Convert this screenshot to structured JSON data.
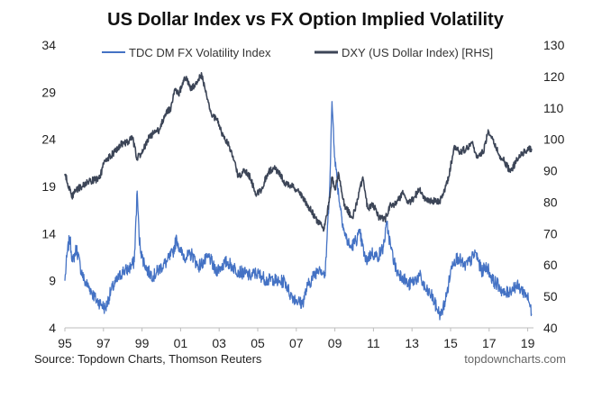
{
  "chart_data": {
    "type": "line",
    "title": "US Dollar Index vs FX Option Implied Volatility",
    "source": "Source: Topdown Charts, Thomson Reuters",
    "watermark": "topdowncharts.com",
    "legend_placement": "top",
    "grid": false,
    "x_axis": {
      "range": [
        1995,
        2019.3
      ],
      "ticks": [
        1995,
        1997,
        1999,
        2001,
        2003,
        2005,
        2007,
        2009,
        2011,
        2013,
        2015,
        2017,
        2019
      ],
      "tick_labels": [
        "95",
        "97",
        "99",
        "01",
        "03",
        "05",
        "07",
        "09",
        "11",
        "13",
        "15",
        "17",
        "19"
      ]
    },
    "y_left": {
      "range": [
        4,
        34
      ],
      "ticks": [
        4,
        9,
        14,
        19,
        24,
        29,
        34
      ],
      "tick_labels": [
        "4",
        "9",
        "14",
        "19",
        "24",
        "29",
        "34"
      ]
    },
    "y_right": {
      "range": [
        40,
        130
      ],
      "ticks": [
        40,
        50,
        60,
        70,
        80,
        90,
        100,
        110,
        120,
        130
      ],
      "tick_labels": [
        "40",
        "50",
        "60",
        "70",
        "80",
        "90",
        "100",
        "110",
        "120",
        "130"
      ]
    },
    "series": [
      {
        "name": "TDC DM FX Volatility Index",
        "axis": "left",
        "color": "#4472C4",
        "points": [
          [
            1995.0,
            9.0
          ],
          [
            1995.1,
            11.5
          ],
          [
            1995.25,
            13.6
          ],
          [
            1995.4,
            11.0
          ],
          [
            1995.6,
            12.5
          ],
          [
            1995.8,
            10.5
          ],
          [
            1996.0,
            9.0
          ],
          [
            1996.3,
            8.2
          ],
          [
            1996.6,
            7.0
          ],
          [
            1996.9,
            6.5
          ],
          [
            1997.1,
            6.0
          ],
          [
            1997.4,
            8.0
          ],
          [
            1997.7,
            9.0
          ],
          [
            1998.0,
            10.0
          ],
          [
            1998.3,
            10.2
          ],
          [
            1998.6,
            11.0
          ],
          [
            1998.75,
            18.5
          ],
          [
            1998.85,
            13.5
          ],
          [
            1999.0,
            11.5
          ],
          [
            1999.3,
            10.0
          ],
          [
            1999.6,
            9.5
          ],
          [
            2000.0,
            10.5
          ],
          [
            2000.3,
            11.0
          ],
          [
            2000.6,
            12.0
          ],
          [
            2000.8,
            13.5
          ],
          [
            2001.0,
            12.0
          ],
          [
            2001.3,
            11.5
          ],
          [
            2001.6,
            11.8
          ],
          [
            2001.9,
            10.5
          ],
          [
            2002.2,
            11.0
          ],
          [
            2002.5,
            11.5
          ],
          [
            2002.8,
            10.0
          ],
          [
            2003.1,
            10.5
          ],
          [
            2003.4,
            11.0
          ],
          [
            2003.7,
            10.5
          ],
          [
            2004.0,
            10.0
          ],
          [
            2004.3,
            9.8
          ],
          [
            2004.6,
            9.5
          ],
          [
            2004.9,
            9.8
          ],
          [
            2005.2,
            9.5
          ],
          [
            2005.5,
            9.0
          ],
          [
            2005.8,
            9.2
          ],
          [
            2006.1,
            8.8
          ],
          [
            2006.4,
            9.0
          ],
          [
            2006.7,
            7.5
          ],
          [
            2007.0,
            7.0
          ],
          [
            2007.3,
            6.5
          ],
          [
            2007.6,
            8.5
          ],
          [
            2007.9,
            9.5
          ],
          [
            2008.2,
            10.5
          ],
          [
            2008.5,
            9.5
          ],
          [
            2008.75,
            20.0
          ],
          [
            2008.85,
            28.0
          ],
          [
            2009.0,
            22.0
          ],
          [
            2009.2,
            18.0
          ],
          [
            2009.5,
            14.0
          ],
          [
            2009.8,
            12.5
          ],
          [
            2010.0,
            13.0
          ],
          [
            2010.3,
            14.0
          ],
          [
            2010.6,
            11.0
          ],
          [
            2010.9,
            12.0
          ],
          [
            2011.2,
            11.5
          ],
          [
            2011.5,
            12.5
          ],
          [
            2011.7,
            15.0
          ],
          [
            2011.9,
            12.5
          ],
          [
            2012.2,
            10.0
          ],
          [
            2012.5,
            9.5
          ],
          [
            2012.8,
            8.5
          ],
          [
            2013.1,
            9.0
          ],
          [
            2013.4,
            9.5
          ],
          [
            2013.7,
            8.0
          ],
          [
            2014.0,
            7.5
          ],
          [
            2014.3,
            6.0
          ],
          [
            2014.5,
            5.3
          ],
          [
            2014.8,
            7.5
          ],
          [
            2015.1,
            11.0
          ],
          [
            2015.4,
            11.5
          ],
          [
            2015.7,
            10.5
          ],
          [
            2016.0,
            11.0
          ],
          [
            2016.3,
            12.0
          ],
          [
            2016.6,
            10.0
          ],
          [
            2016.9,
            10.5
          ],
          [
            2017.2,
            9.0
          ],
          [
            2017.5,
            8.5
          ],
          [
            2017.8,
            7.5
          ],
          [
            2018.1,
            8.0
          ],
          [
            2018.4,
            8.5
          ],
          [
            2018.7,
            8.0
          ],
          [
            2018.95,
            7.5
          ],
          [
            2019.1,
            6.5
          ],
          [
            2019.2,
            5.5
          ]
        ]
      },
      {
        "name": "DXY (US Dollar Index) [RHS]",
        "axis": "right",
        "color": "#3C4557",
        "points": [
          [
            1995.0,
            89.0
          ],
          [
            1995.2,
            85.0
          ],
          [
            1995.35,
            81.5
          ],
          [
            1995.6,
            84.0
          ],
          [
            1995.9,
            85.0
          ],
          [
            1996.2,
            86.5
          ],
          [
            1996.5,
            87.0
          ],
          [
            1996.8,
            87.5
          ],
          [
            1997.0,
            92.0
          ],
          [
            1997.3,
            94.5
          ],
          [
            1997.6,
            96.0
          ],
          [
            1997.9,
            98.5
          ],
          [
            1998.2,
            99.0
          ],
          [
            1998.5,
            100.5
          ],
          [
            1998.75,
            94.0
          ],
          [
            1999.0,
            95.5
          ],
          [
            1999.3,
            100.0
          ],
          [
            1999.6,
            102.0
          ],
          [
            1999.9,
            103.0
          ],
          [
            2000.2,
            108.0
          ],
          [
            2000.5,
            110.0
          ],
          [
            2000.7,
            116.0
          ],
          [
            2000.9,
            114.0
          ],
          [
            2001.1,
            118.0
          ],
          [
            2001.3,
            120.0
          ],
          [
            2001.5,
            116.0
          ],
          [
            2001.7,
            117.0
          ],
          [
            2001.9,
            119.0
          ],
          [
            2002.1,
            120.5
          ],
          [
            2002.3,
            115.0
          ],
          [
            2002.6,
            108.0
          ],
          [
            2002.9,
            106.0
          ],
          [
            2003.2,
            101.0
          ],
          [
            2003.5,
            98.0
          ],
          [
            2003.8,
            93.0
          ],
          [
            2004.0,
            88.0
          ],
          [
            2004.3,
            90.5
          ],
          [
            2004.6,
            88.0
          ],
          [
            2004.9,
            82.5
          ],
          [
            2005.2,
            84.0
          ],
          [
            2005.5,
            89.0
          ],
          [
            2005.8,
            91.0
          ],
          [
            2006.1,
            89.5
          ],
          [
            2006.4,
            86.0
          ],
          [
            2006.7,
            85.5
          ],
          [
            2007.0,
            84.0
          ],
          [
            2007.3,
            82.0
          ],
          [
            2007.6,
            79.0
          ],
          [
            2007.9,
            76.0
          ],
          [
            2008.2,
            73.0
          ],
          [
            2008.45,
            71.5
          ],
          [
            2008.7,
            80.0
          ],
          [
            2008.85,
            88.0
          ],
          [
            2009.0,
            84.0
          ],
          [
            2009.2,
            89.0
          ],
          [
            2009.5,
            79.0
          ],
          [
            2009.9,
            75.0
          ],
          [
            2010.2,
            81.0
          ],
          [
            2010.45,
            88.0
          ],
          [
            2010.7,
            78.0
          ],
          [
            2011.0,
            79.0
          ],
          [
            2011.3,
            75.0
          ],
          [
            2011.6,
            74.5
          ],
          [
            2011.9,
            79.0
          ],
          [
            2012.2,
            79.5
          ],
          [
            2012.5,
            83.0
          ],
          [
            2012.8,
            79.5
          ],
          [
            2013.1,
            81.5
          ],
          [
            2013.4,
            84.0
          ],
          [
            2013.7,
            81.0
          ],
          [
            2014.0,
            80.5
          ],
          [
            2014.4,
            80.0
          ],
          [
            2014.6,
            82.0
          ],
          [
            2014.9,
            88.0
          ],
          [
            2015.2,
            98.0
          ],
          [
            2015.5,
            96.0
          ],
          [
            2015.8,
            97.0
          ],
          [
            2016.1,
            99.0
          ],
          [
            2016.4,
            94.0
          ],
          [
            2016.7,
            96.0
          ],
          [
            2016.95,
            103.0
          ],
          [
            2017.2,
            100.0
          ],
          [
            2017.5,
            95.0
          ],
          [
            2017.8,
            93.0
          ],
          [
            2018.1,
            89.5
          ],
          [
            2018.4,
            93.0
          ],
          [
            2018.7,
            95.5
          ],
          [
            2018.95,
            96.5
          ],
          [
            2019.2,
            97.0
          ]
        ]
      }
    ]
  }
}
